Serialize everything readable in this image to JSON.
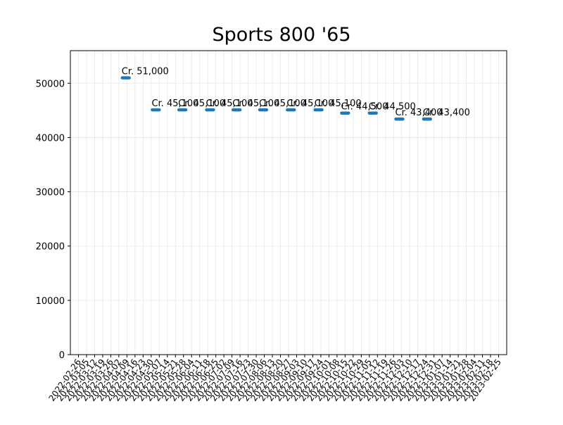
{
  "chart_data": {
    "type": "line",
    "title": "Sports 800 '65",
    "xlabel": "",
    "ylabel": "",
    "grid": true,
    "series_color": "#1f77b4",
    "ylim": [
      0,
      56000
    ],
    "xlim": [
      "2022-02-19",
      "2023-03-04"
    ],
    "y_ticks": [
      0,
      10000,
      20000,
      30000,
      40000,
      50000
    ],
    "x_ticks": [
      "2022-02-26",
      "2022-03-05",
      "2022-03-12",
      "2022-03-19",
      "2022-03-26",
      "2022-04-02",
      "2022-04-09",
      "2022-04-16",
      "2022-04-23",
      "2022-04-30",
      "2022-05-07",
      "2022-05-14",
      "2022-05-21",
      "2022-05-28",
      "2022-06-04",
      "2022-06-11",
      "2022-06-18",
      "2022-06-25",
      "2022-07-02",
      "2022-07-09",
      "2022-07-16",
      "2022-07-23",
      "2022-07-30",
      "2022-08-06",
      "2022-08-13",
      "2022-08-20",
      "2022-08-27",
      "2022-09-03",
      "2022-09-10",
      "2022-09-17",
      "2022-09-24",
      "2022-10-01",
      "2022-10-08",
      "2022-10-15",
      "2022-10-22",
      "2022-10-29",
      "2022-11-05",
      "2022-11-12",
      "2022-11-19",
      "2022-11-26",
      "2022-12-03",
      "2022-12-10",
      "2022-12-17",
      "2022-12-24",
      "2022-12-31",
      "2023-01-07",
      "2023-01-14",
      "2023-01-21",
      "2023-01-28",
      "2023-02-04",
      "2023-02-11",
      "2023-02-18",
      "2023-02-25"
    ],
    "segments": [
      {
        "start": "2022-04-05",
        "end": "2022-04-11",
        "value": 51000,
        "label": "Cr. 51,000"
      },
      {
        "start": "2022-05-01",
        "end": "2022-05-07",
        "value": 45100,
        "label": "Cr. 45,100"
      },
      {
        "start": "2022-05-24",
        "end": "2022-05-30",
        "value": 45100,
        "label": "Cr. 45,100"
      },
      {
        "start": "2022-06-17",
        "end": "2022-06-23",
        "value": 45100,
        "label": "Cr. 45,100"
      },
      {
        "start": "2022-07-10",
        "end": "2022-07-16",
        "value": 45100,
        "label": "Cr. 45,100"
      },
      {
        "start": "2022-08-02",
        "end": "2022-08-08",
        "value": 45100,
        "label": "Cr. 45,100"
      },
      {
        "start": "2022-08-26",
        "end": "2022-09-01",
        "value": 45100,
        "label": "Cr. 45,100"
      },
      {
        "start": "2022-09-19",
        "end": "2022-09-25",
        "value": 45100,
        "label": "Cr. 45,100"
      },
      {
        "start": "2022-10-12",
        "end": "2022-10-18",
        "value": 44500,
        "label": "Cr. 44,500"
      },
      {
        "start": "2022-11-05",
        "end": "2022-11-11",
        "value": 44500,
        "label": "Cr. 44,500"
      },
      {
        "start": "2022-11-28",
        "end": "2022-12-04",
        "value": 43400,
        "label": "Cr. 43,400"
      },
      {
        "start": "2022-12-22",
        "end": "2022-12-28",
        "value": 43400,
        "label": "Cr. 43,400"
      }
    ]
  }
}
